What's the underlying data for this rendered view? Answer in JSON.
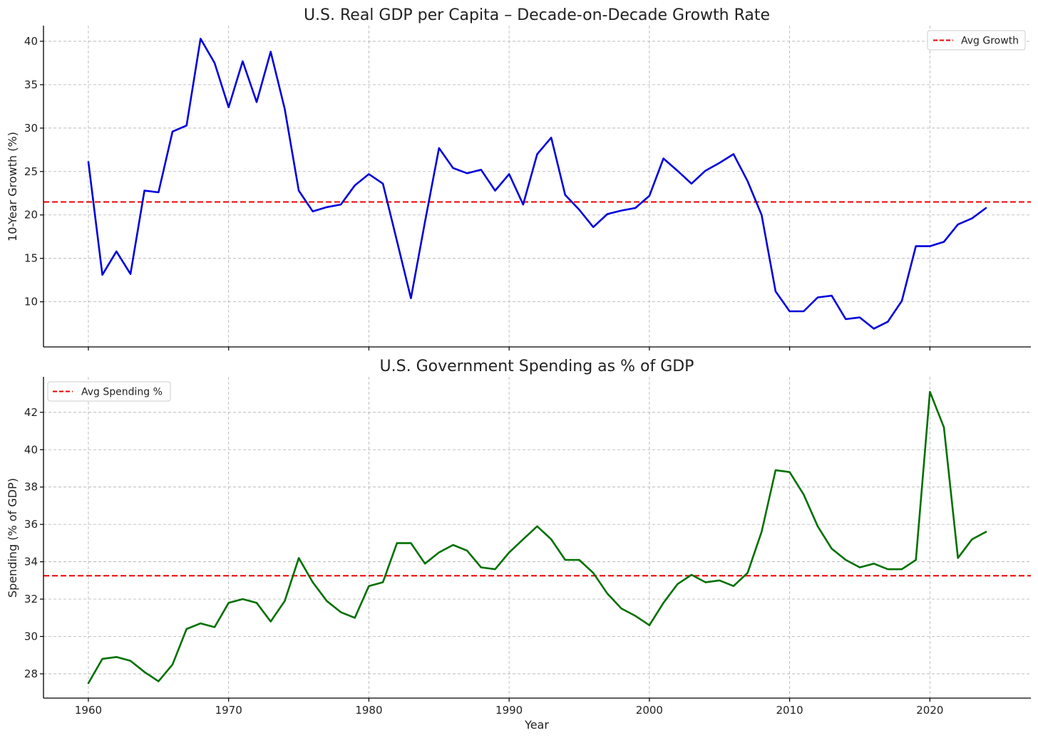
{
  "colors": {
    "growth_line": "#0000dd",
    "spending_line": "#007000",
    "avg_line": "#ee0000",
    "grid": "#b0b0b0"
  },
  "chart_data": [
    {
      "type": "line",
      "title": "U.S. Real GDP per Capita – Decade-on-Decade Growth Rate",
      "xlabel": "",
      "ylabel": "10-Year Growth (%)",
      "xlim": [
        1956.8,
        2027.2
      ],
      "ylim": [
        4.8,
        41.8
      ],
      "xticks": [
        1960,
        1970,
        1980,
        1990,
        2000,
        2010,
        2020
      ],
      "yticks": [
        10,
        15,
        20,
        25,
        30,
        35,
        40
      ],
      "grid": true,
      "legend_position": "top-right",
      "series": [
        {
          "name": "10-Year Growth",
          "x": [
            1960,
            1961,
            1962,
            1963,
            1964,
            1965,
            1966,
            1967,
            1968,
            1969,
            1970,
            1971,
            1972,
            1973,
            1974,
            1975,
            1976,
            1977,
            1978,
            1979,
            1980,
            1981,
            1982,
            1983,
            1984,
            1985,
            1986,
            1987,
            1988,
            1989,
            1990,
            1991,
            1992,
            1993,
            1994,
            1995,
            1996,
            1997,
            1998,
            1999,
            2000,
            2001,
            2002,
            2003,
            2004,
            2005,
            2006,
            2007,
            2008,
            2009,
            2010,
            2011,
            2012,
            2013,
            2014,
            2015,
            2016,
            2017,
            2018,
            2019,
            2020,
            2021,
            2022,
            2023,
            2024
          ],
          "values": [
            26.1,
            13.1,
            15.8,
            13.2,
            22.8,
            22.6,
            29.6,
            30.3,
            40.3,
            37.5,
            32.4,
            37.7,
            33.0,
            38.8,
            32.2,
            22.8,
            20.4,
            20.9,
            21.2,
            23.4,
            24.7,
            23.6,
            17.0,
            10.4,
            19.2,
            27.7,
            25.4,
            24.8,
            25.2,
            22.8,
            24.7,
            21.2,
            27.0,
            28.9,
            22.3,
            20.6,
            18.6,
            20.1,
            20.5,
            20.8,
            22.2,
            26.5,
            25.1,
            23.6,
            25.1,
            26.0,
            27.0,
            23.9,
            20.0,
            11.2,
            8.9,
            8.9,
            10.5,
            10.7,
            8.0,
            8.2,
            6.9,
            7.7,
            10.1,
            16.4,
            16.4,
            16.9,
            18.9,
            19.6,
            20.8
          ]
        }
      ],
      "reference_lines": [
        {
          "name": "Avg Growth",
          "value": 21.5
        }
      ],
      "legend": [
        "Avg Growth"
      ]
    },
    {
      "type": "line",
      "title": "U.S. Government Spending as % of GDP",
      "xlabel": "Year",
      "ylabel": "Spending (% of GDP)",
      "xlim": [
        1956.8,
        2027.2
      ],
      "ylim": [
        26.7,
        43.9
      ],
      "xticks": [
        1960,
        1970,
        1980,
        1990,
        2000,
        2010,
        2020
      ],
      "yticks": [
        28,
        30,
        32,
        34,
        36,
        38,
        40,
        42
      ],
      "grid": true,
      "legend_position": "top-left",
      "series": [
        {
          "name": "Spending",
          "x": [
            1960,
            1961,
            1962,
            1963,
            1964,
            1965,
            1966,
            1967,
            1968,
            1969,
            1970,
            1971,
            1972,
            1973,
            1974,
            1975,
            1976,
            1977,
            1978,
            1979,
            1980,
            1981,
            1982,
            1983,
            1984,
            1985,
            1986,
            1987,
            1988,
            1989,
            1990,
            1991,
            1992,
            1993,
            1994,
            1995,
            1996,
            1997,
            1998,
            1999,
            2000,
            2001,
            2002,
            2003,
            2004,
            2005,
            2006,
            2007,
            2008,
            2009,
            2010,
            2011,
            2012,
            2013,
            2014,
            2015,
            2016,
            2017,
            2018,
            2019,
            2020,
            2021,
            2022,
            2023,
            2024
          ],
          "values": [
            27.5,
            28.8,
            28.9,
            28.7,
            28.1,
            27.6,
            28.5,
            30.4,
            30.7,
            30.5,
            31.8,
            32.0,
            31.8,
            30.8,
            31.9,
            34.2,
            32.9,
            31.9,
            31.3,
            31.0,
            32.7,
            32.9,
            35.0,
            35.0,
            33.9,
            34.5,
            34.9,
            34.6,
            33.7,
            33.6,
            34.5,
            35.2,
            35.9,
            35.2,
            34.1,
            34.1,
            33.4,
            32.3,
            31.5,
            31.1,
            30.6,
            31.8,
            32.8,
            33.3,
            32.9,
            33.0,
            32.7,
            33.4,
            35.6,
            38.9,
            38.8,
            37.6,
            35.9,
            34.7,
            34.1,
            33.7,
            33.9,
            33.6,
            33.6,
            34.1,
            43.1,
            41.2,
            34.2,
            35.2,
            35.6
          ]
        }
      ],
      "reference_lines": [
        {
          "name": "Avg Spending %",
          "value": 33.25
        }
      ],
      "legend": [
        "Avg Spending %"
      ]
    }
  ]
}
